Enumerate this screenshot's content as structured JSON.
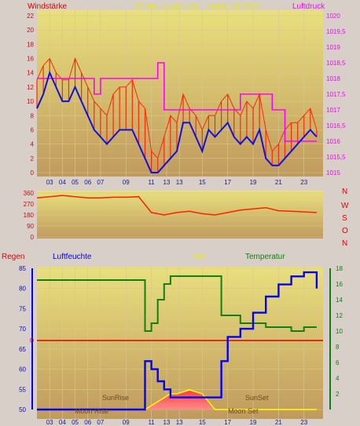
{
  "header": {
    "left": "Windstärke",
    "center": "24 hour graph day : Januar 23.2017",
    "right": "Luftdruck"
  },
  "bottom_header": {
    "regen": "Regen",
    "luftfeuchte": "Luftfeuchte",
    "uv": "UV",
    "temperatur": "Temperatur"
  },
  "compass": [
    "N",
    "W",
    "S",
    "O",
    "N"
  ],
  "annotations": {
    "sunrise": "SunRise",
    "sunset": "SunSet",
    "moonrise": "Moon Rise",
    "moonset": "Moon Set",
    "rain_zero": "0"
  },
  "colors": {
    "wind": "#ff2a00",
    "wind_avg": "#1010e0",
    "pressure": "#ff00ff",
    "direction": "#ff2000",
    "humidity": "#0000ff",
    "temperature": "#108010",
    "rain": "#e00000",
    "uv_fill": "#ff4040",
    "uv_line": "#ffff00",
    "plot_bg_top": "#e9e07e",
    "plot_bg_bottom": "#c09a5e"
  },
  "chart_data": [
    {
      "type": "line",
      "name": "wind-pressure",
      "x_tick_labels": [
        "03",
        "04",
        "05",
        "06",
        "07",
        "09",
        "11",
        "13",
        "13",
        "15",
        "17",
        "19",
        "21",
        "23"
      ],
      "ylim_left": [
        0,
        22
      ],
      "y_ticks_left": [
        "0",
        "2",
        "4",
        "6",
        "8",
        "10",
        "12",
        "14",
        "16",
        "18",
        "20",
        "22"
      ],
      "ylim_right": [
        1015,
        1020
      ],
      "y_ticks_right": [
        "1015",
        "1015,5",
        "1016",
        "1016,5",
        "1017",
        "1017,5",
        "1018",
        "1018,5",
        "1019",
        "1019,5",
        "1020"
      ],
      "x_hours": [
        2,
        2.5,
        3,
        3.5,
        4,
        4.5,
        5,
        5.5,
        6,
        6.5,
        7,
        7.5,
        8,
        8.5,
        9,
        9.5,
        10,
        10.5,
        11,
        11.5,
        12,
        12.5,
        13,
        13.5,
        14,
        14.5,
        15,
        15.5,
        16,
        16.5,
        17,
        17.5,
        18,
        18.5,
        19,
        19.5,
        20,
        20.5,
        21,
        21.5,
        22,
        22.5,
        23,
        23.5,
        24
      ],
      "wind_gust": [
        13,
        15,
        16,
        14,
        13,
        13,
        16,
        14,
        12,
        10,
        9,
        8,
        11,
        12,
        12,
        13,
        10,
        9,
        3,
        2,
        5,
        8,
        7,
        11,
        9,
        8,
        6,
        8,
        8,
        10,
        11,
        9,
        8,
        10,
        9,
        11,
        6,
        3,
        4,
        6,
        7,
        7,
        8,
        9,
        6
      ],
      "wind_avg": [
        9,
        11,
        14,
        12,
        10,
        10,
        12,
        10,
        8,
        6,
        5,
        4,
        5,
        6,
        6,
        6,
        4,
        2,
        0,
        0,
        1,
        2,
        3,
        7,
        7,
        5,
        3,
        6,
        5,
        6,
        7,
        5,
        4,
        5,
        4,
        6,
        2,
        1,
        1,
        2,
        3,
        4,
        5,
        6,
        5
      ],
      "pressure": [
        1018,
        1018,
        1018,
        1018,
        1018,
        1018,
        1018,
        1018,
        1018,
        1017.5,
        1018,
        1018,
        1018,
        1018,
        1018,
        1018,
        1018,
        1018,
        1018,
        1018.5,
        1017,
        1017,
        1017,
        1017,
        1017,
        1017,
        1017,
        1017,
        1017,
        1017,
        1017,
        1017,
        1017.5,
        1017.5,
        1017.5,
        1017.5,
        1017.5,
        1017,
        1017,
        1016,
        1016,
        1016,
        1016,
        1016,
        1016
      ]
    },
    {
      "type": "line",
      "name": "wind-direction",
      "x_hours": [
        2,
        3,
        4,
        5,
        6,
        7,
        8,
        9,
        10,
        11,
        12,
        13,
        14,
        15,
        16,
        17,
        18,
        19,
        20,
        21,
        22,
        23,
        24
      ],
      "ylim": [
        0,
        360
      ],
      "y_ticks": [
        "0",
        "90",
        "180",
        "270",
        "360"
      ],
      "direction": [
        320,
        330,
        340,
        330,
        320,
        320,
        325,
        325,
        330,
        200,
        180,
        200,
        210,
        190,
        180,
        200,
        220,
        230,
        240,
        215,
        210,
        205,
        200
      ]
    },
    {
      "type": "line",
      "name": "humidity-temperature-uv",
      "ylim_left": [
        50,
        85
      ],
      "y_ticks_left": [
        "50",
        "55",
        "60",
        "65",
        "70",
        "75",
        "80",
        "85"
      ],
      "ylim_right": [
        0,
        18
      ],
      "y_ticks_right": [
        "2",
        "4",
        "6",
        "8",
        "10",
        "12",
        "14",
        "16",
        "18"
      ],
      "x_hours": [
        2,
        3,
        4,
        5,
        6,
        7,
        8,
        9,
        10,
        10.5,
        11,
        11.5,
        12,
        12.5,
        13,
        14,
        15,
        16,
        16.5,
        17,
        18,
        19,
        20,
        21,
        22,
        23,
        24
      ],
      "humidity": [
        50,
        50,
        50,
        50,
        50,
        50,
        50,
        50,
        50,
        62,
        60,
        57,
        55,
        53,
        53,
        53,
        53,
        53,
        62,
        68,
        70,
        74,
        78,
        81,
        83,
        84,
        80
      ],
      "temperature": [
        16.5,
        16.5,
        16.5,
        16.5,
        16.5,
        16.5,
        16.5,
        16.5,
        16.5,
        10,
        11,
        14,
        16,
        17,
        17,
        17,
        17,
        17,
        12,
        12,
        11,
        11,
        10.5,
        10.5,
        10,
        10.5,
        10.5
      ],
      "uv": [
        0,
        0,
        0,
        0,
        0,
        0,
        0,
        0,
        0,
        0,
        0.5,
        1,
        1.5,
        2,
        2,
        2.5,
        2,
        0,
        0,
        0,
        0,
        0,
        0,
        0,
        0,
        0,
        0
      ],
      "rain": [
        0,
        0,
        0,
        0,
        0,
        0,
        0,
        0,
        0,
        0,
        0,
        0,
        0,
        0,
        0,
        0,
        0,
        0,
        0,
        0,
        0,
        0,
        0,
        0,
        0,
        0,
        0
      ]
    }
  ]
}
